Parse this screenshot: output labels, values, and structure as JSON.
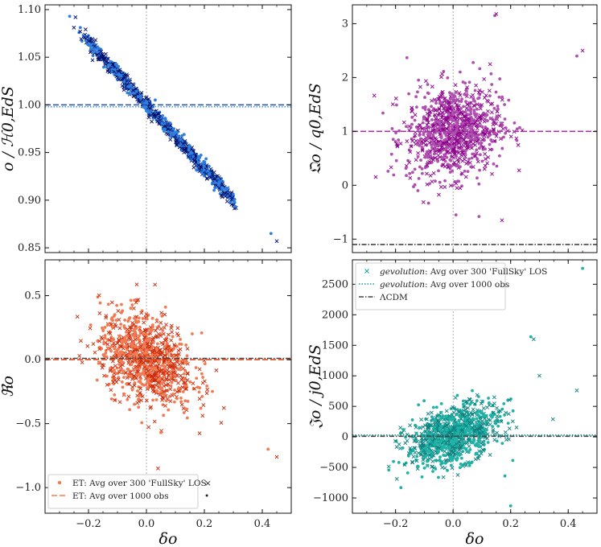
{
  "chart_data": [
    {
      "type": "scatter",
      "panel": "top-left",
      "ylabel": "𝔋o / ℋ0,EdS",
      "xlabel": "",
      "xlim": [
        -0.35,
        0.5
      ],
      "ylim": [
        0.845,
        1.105
      ],
      "xticks": [
        -0.2,
        0.0,
        0.2,
        0.4
      ],
      "show_xtick_labels": false,
      "yticks": [
        0.85,
        0.9,
        0.95,
        1.0,
        1.05,
        1.1
      ],
      "ytick_labels": [
        "0.85",
        "0.90",
        "0.95",
        "1.00",
        "1.05",
        "1.10"
      ],
      "trend": {
        "slope": -0.333,
        "intercept": 1.0,
        "spread": 0.004,
        "x_range": [
          -0.21,
          0.29
        ],
        "n": 900
      },
      "outliers": [
        [
          -0.265,
          1.093
        ],
        [
          -0.245,
          1.092
        ],
        [
          0.43,
          0.865
        ],
        [
          0.45,
          0.857
        ],
        [
          0.28,
          0.912
        ]
      ],
      "hlines": [
        {
          "y": 1.0,
          "color": "#1f4fb3",
          "style": "dashed"
        },
        {
          "y": 0.998,
          "color": "#4a8fd8",
          "style": "dotted"
        }
      ],
      "vline": 0.0,
      "colors": {
        "markers_a": "#000e6b",
        "markers_b": "#2f7fe0"
      }
    },
    {
      "type": "scatter",
      "panel": "top-right",
      "ylabel": "𝔔o / q0,EdS",
      "xlabel": "",
      "xlim": [
        -0.35,
        0.5
      ],
      "ylim": [
        -1.25,
        3.35
      ],
      "xticks": [
        -0.2,
        0.0,
        0.2,
        0.4
      ],
      "show_xtick_labels": false,
      "yticks": [
        -1,
        0,
        1,
        2,
        3
      ],
      "ytick_labels": [
        "−1",
        "0",
        "1",
        "2",
        "3"
      ],
      "cloud": {
        "center": [
          0.0,
          1.0
        ],
        "sx": 0.09,
        "sy": 0.42,
        "slope": 1.6,
        "n": 1000
      },
      "outliers": [
        [
          0.43,
          2.4
        ],
        [
          0.45,
          2.5
        ],
        [
          0.145,
          3.15
        ],
        [
          0.15,
          3.18
        ],
        [
          0.09,
          -0.58
        ],
        [
          0.17,
          -0.65
        ],
        [
          0.01,
          -0.55
        ]
      ],
      "hlines": [
        {
          "y": 1.0,
          "color": "#a03aa0",
          "style": "dashed"
        },
        {
          "y": -1.1,
          "color": "#444444",
          "style": "dashdot"
        }
      ],
      "vline": 0.0,
      "colors": {
        "markers_a": "#8b008b",
        "markers_b": "#b050b0"
      }
    },
    {
      "type": "scatter",
      "panel": "bottom-left",
      "ylabel": "ℜo",
      "xlabel": "δo",
      "xlim": [
        -0.35,
        0.5
      ],
      "ylim": [
        -1.2,
        0.78
      ],
      "xticks": [
        -0.2,
        0.0,
        0.2,
        0.4
      ],
      "show_xtick_labels": true,
      "xtick_labels": [
        "−0.2",
        "0.0",
        "0.2",
        "0.4"
      ],
      "yticks": [
        -1.0,
        -0.5,
        0.0,
        0.5
      ],
      "ytick_labels": [
        "−1.0",
        "−0.5",
        "0.0",
        "0.5"
      ],
      "cloud": {
        "center": [
          0.0,
          0.0
        ],
        "sx": 0.09,
        "sy": 0.17,
        "slope": -1.55,
        "n": 1000
      },
      "outliers": [
        [
          0.42,
          -0.7
        ],
        [
          0.45,
          -0.76
        ],
        [
          0.15,
          -1.03
        ],
        [
          0.04,
          -0.85
        ]
      ],
      "hlines": [
        {
          "y": 0.0,
          "color": "#e84c1e",
          "style": "dashed"
        },
        {
          "y": 0.01,
          "color": "#444444",
          "style": "dashdot"
        }
      ],
      "vline": 0.0,
      "colors": {
        "markers_a": "#cc2a08",
        "markers_b": "#f37a52"
      },
      "legend": {
        "placement": "lower-left",
        "entries": [
          {
            "label": "ET: Avg over 300 'FullSky' LOS",
            "marker": "dot",
            "color": "#f37a52"
          },
          {
            "label": "ET: Avg over 1000 obs",
            "marker": "dashed-line",
            "color": "#f37a52"
          }
        ],
        "extra_markers": [
          {
            "symbol": "×",
            "color": "#8b2a8b"
          },
          {
            "symbol": "•",
            "color": "#f37a52"
          }
        ]
      }
    },
    {
      "type": "scatter",
      "panel": "bottom-right",
      "ylabel": "𝔍o / j0,EdS",
      "xlabel": "δo",
      "xlim": [
        -0.35,
        0.5
      ],
      "ylim": [
        -1250,
        2900
      ],
      "xticks": [
        -0.2,
        0.0,
        0.2,
        0.4
      ],
      "show_xtick_labels": true,
      "xtick_labels": [
        "−0.2",
        "0.0",
        "0.2",
        "0.4"
      ],
      "yticks": [
        -1000,
        -500,
        0,
        500,
        1000,
        1500,
        2000,
        2500
      ],
      "ytick_labels": [
        "−1000",
        "−500",
        "0",
        "500",
        "1000",
        "1500",
        "2000",
        "2500"
      ],
      "cloud": {
        "center": [
          0.0,
          30.0
        ],
        "sx": 0.09,
        "sy": 230.0,
        "slope": 2700,
        "n": 1000
      },
      "outliers": [
        [
          0.45,
          2760
        ],
        [
          0.43,
          760
        ],
        [
          0.27,
          1640
        ],
        [
          0.28,
          1600
        ],
        [
          0.2,
          -1130
        ],
        [
          0.3,
          1000
        ],
        [
          0.18,
          -640
        ]
      ],
      "hlines": [
        {
          "y": 30,
          "color": "#1a9e9e",
          "style": "dotted"
        },
        {
          "y": 10,
          "color": "#444444",
          "style": "dashdot"
        }
      ],
      "vline": 0.0,
      "colors": {
        "markers_a": "#0d7f7f",
        "markers_b": "#1fb3a6"
      },
      "legend": {
        "placement": "upper-left",
        "entries": [
          {
            "label_italic": "gevolution",
            "label": ": Avg over 300 'FullSky' LOS",
            "marker": "x",
            "color": "#1a9e9e"
          },
          {
            "label_italic": "gevolution",
            "label": ": Avg over 1000 obs",
            "marker": "dotted-line",
            "color": "#1a9e9e"
          },
          {
            "label": "ΛCDM",
            "marker": "dashdot-line",
            "color": "#444444"
          }
        ]
      }
    }
  ]
}
